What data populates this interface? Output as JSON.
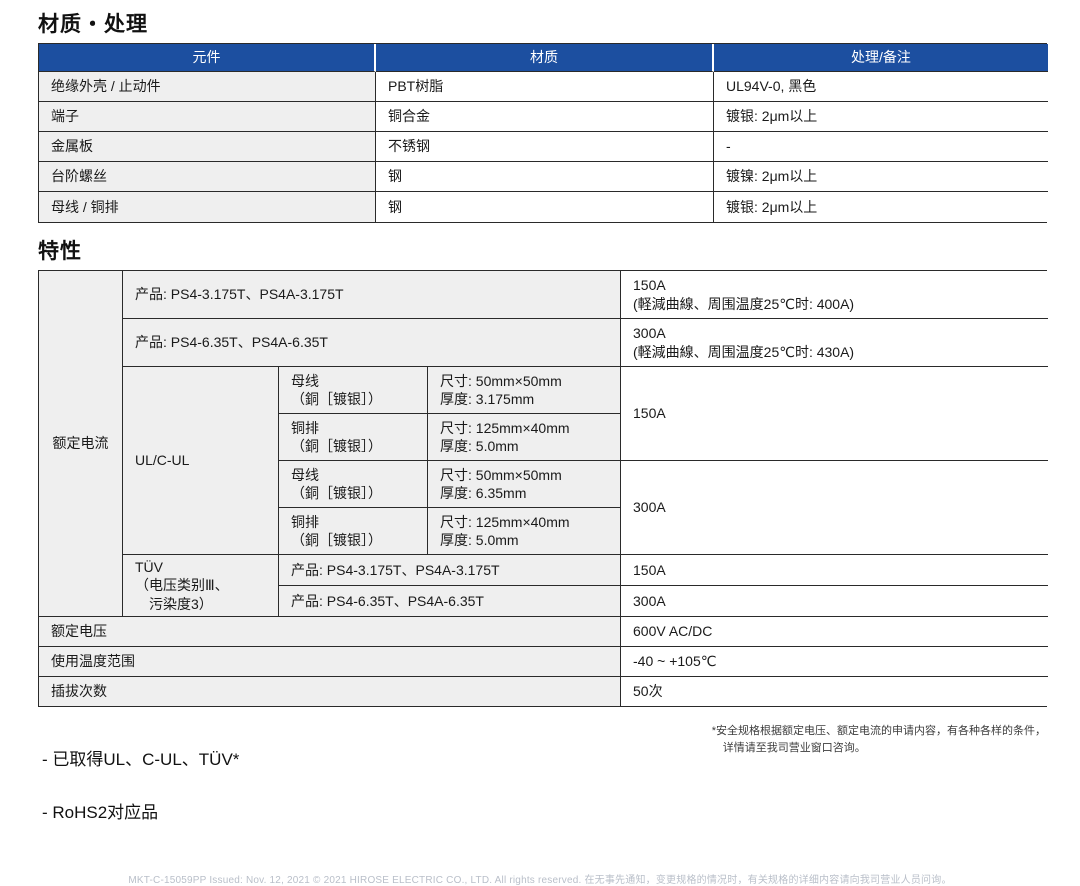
{
  "sections": {
    "materials_title": "材质・处理",
    "characteristics_title": "特性"
  },
  "materials_table": {
    "headers": [
      "元件",
      "材质",
      "处理/备注"
    ],
    "rows": [
      {
        "component": "绝缘外壳 / 止动件",
        "material": "PBT树脂",
        "treatment": "UL94V-0, 黑色"
      },
      {
        "component": "端子",
        "material": "铜合金",
        "treatment": "镀银: 2μm以上"
      },
      {
        "component": "金属板",
        "material": "不锈钢",
        "treatment": "-"
      },
      {
        "component": "台阶螺丝",
        "material": "钢",
        "treatment": "镀镍: 2μm以上"
      },
      {
        "component": "母线 / 铜排",
        "material": "钢",
        "treatment": "镀银: 2μm以上"
      }
    ]
  },
  "characteristics": {
    "rated_current_label": "额定电流",
    "product_rows": [
      {
        "product": "产品: PS4-3.175T、PS4A-3.175T",
        "value": "150A\n(軽減曲線、周围温度25℃时: 400A)"
      },
      {
        "product": "产品: PS4-6.35T、PS4A-6.35T",
        "value": "300A\n(軽減曲線、周围温度25℃时: 430A)"
      }
    ],
    "ul_block": {
      "label": "UL/C-UL",
      "rows": [
        {
          "conductor": "母线\n（銅［镀银］）",
          "dimensions": "尺寸: 50mm×50mm\n厚度: 3.175mm"
        },
        {
          "conductor": "铜排\n（銅［镀银］）",
          "dimensions": "尺寸: 125mm×40mm\n厚度: 5.0mm"
        },
        {
          "conductor": "母线\n（銅［镀银］）",
          "dimensions": "尺寸: 50mm×50mm\n厚度: 6.35mm"
        },
        {
          "conductor": "铜排\n（銅［镀银］）",
          "dimensions": "尺寸: 125mm×40mm\n厚度: 5.0mm"
        }
      ],
      "current_150": "150A",
      "current_300": "300A"
    },
    "tuv_block": {
      "label": "TÜV\n（电压类别Ⅲ、\n　污染度3）",
      "rows": [
        {
          "product": "产品: PS4-3.175T、PS4A-3.175T",
          "value": "150A"
        },
        {
          "product": "产品: PS4-6.35T、PS4A-6.35T",
          "value": "300A"
        }
      ]
    },
    "bottom_rows": [
      {
        "label": "额定电压",
        "value": "600V AC/DC"
      },
      {
        "label": "使用温度范围",
        "value": "-40 ~ +105℃"
      },
      {
        "label": "插拔次数",
        "value": "50次"
      }
    ]
  },
  "footnotes": {
    "bullet_1": "- 已取得UL、C-UL、TÜV*",
    "bullet_2": "- RoHS2对应品",
    "safety_note": "*安全规格根据额定电压、额定电流的申请内容，有各种各样的条件，\n　详情请至我司营业窗口咨询。"
  },
  "footer": {
    "colophon": "MKT-C-15059PP  Issued: Nov. 12, 2021  © 2021 HIROSE ELECTRIC CO., LTD. All rights reserved.  在无事先通知，变更规格的情况时，有关规格的详细内容请向我司营业人员问询。"
  },
  "colors": {
    "header_blue": "#1C4FA0",
    "label_gray": "#EFEFEF",
    "border_dark": "#2A2A2A"
  }
}
